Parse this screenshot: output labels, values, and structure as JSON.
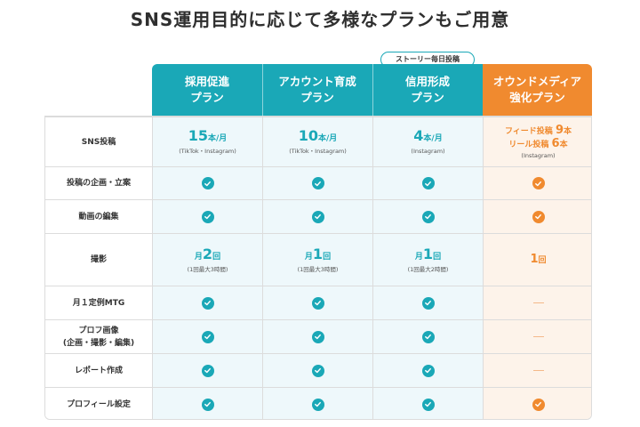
{
  "title": "SNS運用目的に応じて多様なプランもご用意",
  "badge": "ストーリー毎日投稿",
  "plans": [
    {
      "line1": "採用促進",
      "line2": "プラン"
    },
    {
      "line1": "アカウント育成",
      "line2": "プラン"
    },
    {
      "line1": "信用形成",
      "line2": "プラン"
    },
    {
      "line1": "オウンドメディア",
      "line2": "強化プラン"
    }
  ],
  "rows": {
    "sns": {
      "label": "SNS投稿",
      "c1": {
        "num": "15",
        "unit": "本/月",
        "sub": "(TikTok・Instagram)"
      },
      "c2": {
        "num": "10",
        "unit": "本/月",
        "sub": "(TikTok・Instagram)"
      },
      "c3": {
        "num": "4",
        "unit": "本/月",
        "sub": "(Instagram)"
      },
      "c4": {
        "feed_label": "フィード投稿",
        "feed_num": "9",
        "feed_unit": "本",
        "reel_label": "リール投稿",
        "reel_num": "6",
        "reel_unit": "本",
        "sub": "(Instagram)"
      }
    },
    "planning": {
      "label": "投稿の企画・立案"
    },
    "editing": {
      "label": "動画の編集"
    },
    "shooting": {
      "label": "撮影",
      "c1": {
        "pre": "月",
        "num": "2",
        "unit": "回",
        "sub": "(1回最大3時間)"
      },
      "c2": {
        "pre": "月",
        "num": "1",
        "unit": "回",
        "sub": "(1回最大3時間)"
      },
      "c3": {
        "pre": "月",
        "num": "1",
        "unit": "回",
        "sub": "(1回最大2時間)"
      },
      "c4": {
        "num": "1",
        "unit": "回"
      }
    },
    "mtg": {
      "label": "月１定例MTG"
    },
    "profile_image": {
      "label1": "プロフ画像",
      "label2": "(企画・撮影・編集)"
    },
    "report": {
      "label": "レポート作成"
    },
    "profile_setting": {
      "label": "プロフィール設定"
    }
  },
  "colors": {
    "teal": "#1aa8b7",
    "orange": "#f08a2f"
  },
  "icons": {
    "check": "check-circle-icon",
    "dash": "dash-icon"
  }
}
